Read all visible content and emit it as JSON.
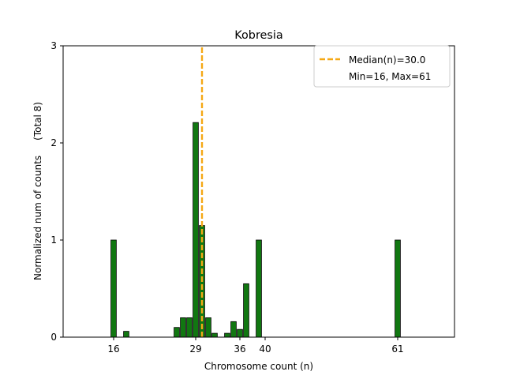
{
  "chart_data": {
    "type": "bar",
    "title": "Kobresia",
    "xlabel": "Chromosome count (n)",
    "ylabel": "Normalized num of counts     (Total 8)",
    "xlim": [
      8,
      70
    ],
    "ylim": [
      0,
      3
    ],
    "xticks": [
      16,
      29,
      36,
      40,
      61
    ],
    "yticks": [
      0,
      1,
      2,
      3
    ],
    "bars": [
      {
        "x": 16,
        "value": 1.0
      },
      {
        "x": 18,
        "value": 0.06
      },
      {
        "x": 26,
        "value": 0.1
      },
      {
        "x": 27,
        "value": 0.2
      },
      {
        "x": 28,
        "value": 0.2
      },
      {
        "x": 29,
        "value": 2.21
      },
      {
        "x": 30,
        "value": 1.15
      },
      {
        "x": 31,
        "value": 0.2
      },
      {
        "x": 32,
        "value": 0.04
      },
      {
        "x": 34,
        "value": 0.04
      },
      {
        "x": 35,
        "value": 0.16
      },
      {
        "x": 36,
        "value": 0.08
      },
      {
        "x": 37,
        "value": 0.55
      },
      {
        "x": 39,
        "value": 1.0
      },
      {
        "x": 61,
        "value": 1.0
      }
    ],
    "median": 30.0,
    "legend": {
      "position": "top-right",
      "median_label": "Median(n)=30.0",
      "range_label": "Min=16, Max=61"
    },
    "colors": {
      "bar_fill": "#117711",
      "bar_edge": "#000000",
      "median_line": "#f5a815",
      "axis": "#000000"
    }
  }
}
